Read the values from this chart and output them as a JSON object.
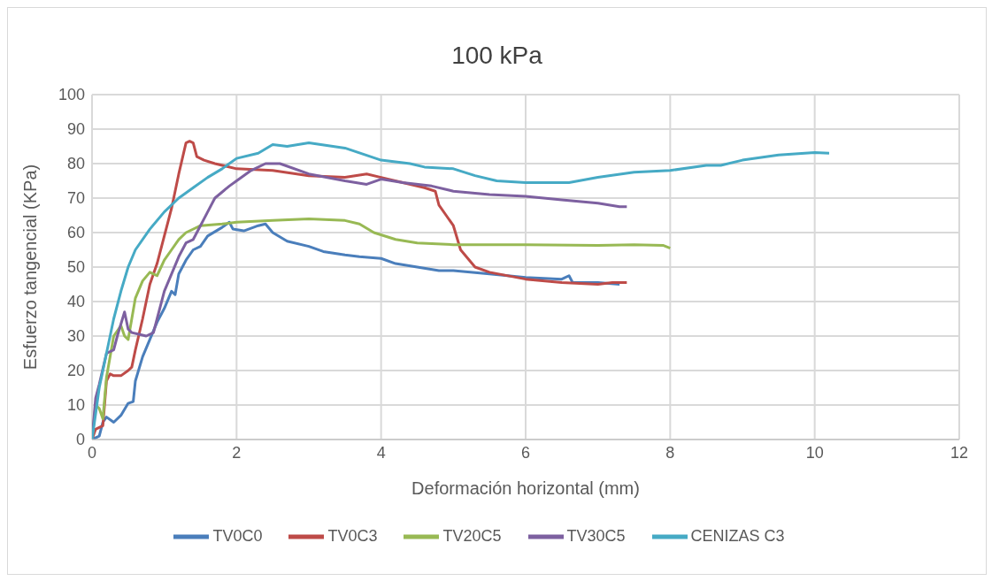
{
  "chart_data": {
    "type": "line",
    "title": "100 kPa",
    "xlabel": "Deformación horizontal (mm)",
    "ylabel": "Esfuerzo tangencial (KPa)",
    "xlim": [
      0,
      12
    ],
    "xticks": [
      0,
      2,
      4,
      6,
      8,
      10,
      12
    ],
    "ylim": [
      0,
      100
    ],
    "yticks": [
      0,
      10,
      20,
      30,
      40,
      50,
      60,
      70,
      80,
      90,
      100
    ],
    "grid": true,
    "legend": "bottom",
    "marker": "none",
    "line_style": "solid",
    "series": [
      {
        "name": "TV0C0",
        "color": "#4a7ebb",
        "x": [
          0,
          0.1,
          0.15,
          0.2,
          0.3,
          0.4,
          0.5,
          0.57,
          0.6,
          0.7,
          0.8,
          0.9,
          1.0,
          1.1,
          1.15,
          1.2,
          1.3,
          1.4,
          1.5,
          1.6,
          1.8,
          1.9,
          1.95,
          2.1,
          2.3,
          2.4,
          2.5,
          2.7,
          3,
          3.2,
          3.5,
          3.7,
          4.0,
          4.2,
          4.5,
          4.8,
          5,
          5.5,
          6,
          6.5,
          6.6,
          6.65,
          7,
          7.3
        ],
        "values": [
          0,
          1,
          5,
          6.5,
          5,
          7,
          10.5,
          11,
          17,
          24,
          29,
          34,
          38,
          43,
          42,
          48,
          52,
          55,
          56,
          59,
          61.5,
          63,
          61,
          60.5,
          62,
          62.5,
          60,
          57.5,
          56,
          54.5,
          53.5,
          53,
          52.5,
          51,
          50,
          49,
          49,
          48,
          47,
          46.5,
          47.5,
          45.5,
          45.5,
          45
        ]
      },
      {
        "name": "TV0C3",
        "color": "#be4b48",
        "x": [
          0,
          0.05,
          0.15,
          0.2,
          0.25,
          0.3,
          0.4,
          0.5,
          0.55,
          0.6,
          0.7,
          0.8,
          0.9,
          1.0,
          1.1,
          1.2,
          1.3,
          1.35,
          1.4,
          1.45,
          1.55,
          1.7,
          2,
          2.5,
          3,
          3.5,
          3.8,
          4,
          4.3,
          4.6,
          4.75,
          4.8,
          4.9,
          5,
          5.1,
          5.3,
          5.5,
          6,
          6.5,
          7,
          7.2,
          7.4
        ],
        "values": [
          0,
          3,
          4,
          17,
          19,
          18.5,
          18.5,
          20,
          21,
          26,
          35,
          45,
          51,
          59,
          67,
          77,
          86,
          86.5,
          86,
          82,
          81,
          80,
          78.5,
          78,
          76.5,
          76,
          77,
          76,
          74.5,
          73,
          72,
          68,
          65,
          62,
          55,
          50,
          48.5,
          46.5,
          45.5,
          45,
          45.5,
          45.5
        ]
      },
      {
        "name": "TV20C5",
        "color": "#98b954",
        "x": [
          0,
          0.05,
          0.1,
          0.15,
          0.2,
          0.3,
          0.4,
          0.45,
          0.5,
          0.55,
          0.6,
          0.7,
          0.8,
          0.85,
          0.9,
          1,
          1.1,
          1.2,
          1.3,
          1.5,
          1.8,
          2,
          2.5,
          3,
          3.5,
          3.7,
          3.9,
          4.2,
          4.5,
          5,
          6,
          7,
          7.5,
          7.9,
          8
        ],
        "values": [
          0,
          10,
          9,
          6,
          18,
          30,
          33,
          30,
          29,
          35,
          41,
          46,
          48.5,
          48,
          47.5,
          52,
          55,
          58,
          60,
          62,
          62.5,
          63,
          63.5,
          64,
          63.5,
          62.5,
          60,
          58,
          57,
          56.5,
          56.5,
          56.3,
          56.5,
          56.3,
          55.5
        ]
      },
      {
        "name": "TV30C5",
        "color": "#7d60a0",
        "x": [
          0,
          0.05,
          0.1,
          0.2,
          0.3,
          0.35,
          0.45,
          0.5,
          0.55,
          0.65,
          0.75,
          0.85,
          0.9,
          1,
          1.1,
          1.2,
          1.3,
          1.4,
          1.5,
          1.6,
          1.7,
          1.9,
          2,
          2.2,
          2.4,
          2.6,
          3,
          3.5,
          3.8,
          4,
          4.3,
          4.7,
          5,
          5.5,
          6,
          6.5,
          7,
          7.3,
          7.4
        ],
        "values": [
          0,
          12,
          16,
          25,
          26,
          30,
          37,
          32,
          31,
          30.5,
          30,
          31,
          35,
          43,
          48,
          53,
          57,
          58,
          62,
          66,
          70,
          73.5,
          75,
          78,
          80,
          80,
          77,
          75,
          74,
          75.5,
          74.5,
          73.5,
          72,
          71,
          70.5,
          69.5,
          68.5,
          67.5,
          67.5
        ]
      },
      {
        "name": "CENIZAS C3",
        "color": "#46aac5",
        "x": [
          0,
          0.1,
          0.2,
          0.3,
          0.4,
          0.5,
          0.6,
          0.8,
          1,
          1.2,
          1.4,
          1.6,
          1.8,
          2,
          2.3,
          2.5,
          2.7,
          3,
          3.5,
          4,
          4.4,
          4.6,
          5,
          5.3,
          5.6,
          6,
          6.3,
          6.6,
          7,
          7.5,
          8,
          8.5,
          8.7,
          9,
          9.5,
          10,
          10.2
        ],
        "values": [
          0,
          15,
          25,
          35,
          43,
          50,
          55,
          61,
          66,
          70,
          73,
          76,
          78.5,
          81.5,
          83,
          85.5,
          85,
          86,
          84.5,
          81,
          80,
          79,
          78.5,
          76.5,
          75,
          74.5,
          74.5,
          74.5,
          76,
          77.5,
          78,
          79.5,
          79.5,
          81,
          82.5,
          83.2,
          83
        ]
      }
    ]
  }
}
